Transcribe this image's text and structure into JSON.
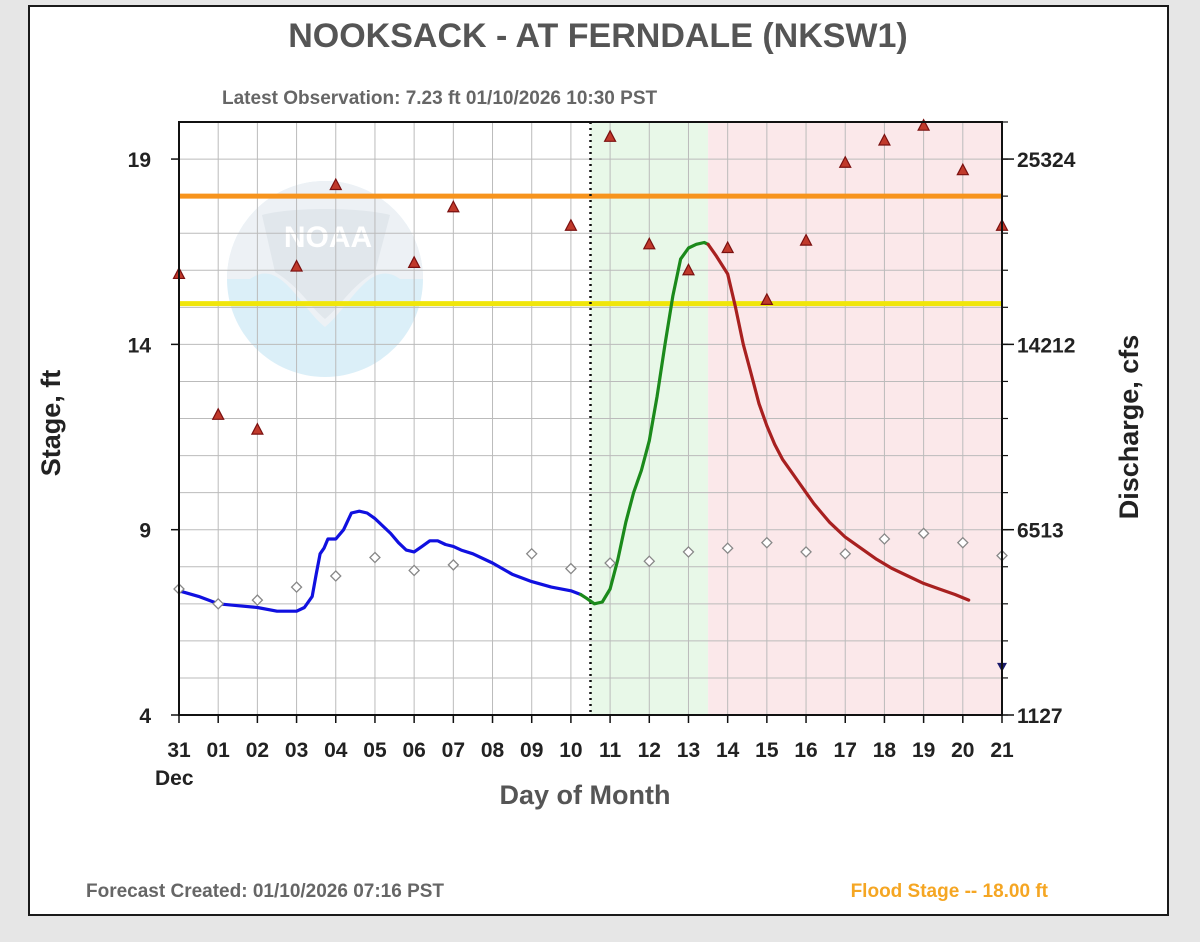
{
  "chart_data": {
    "type": "line",
    "title": "NOOKSACK - AT FERNDALE  (NKSW1)",
    "latest_observation": "Latest Observation: 7.23 ft 01/10/2026 10:30 PST",
    "xlabel": "Day of Month",
    "ylabel": "Stage, ft",
    "y2label": "Discharge, cfs",
    "footer_left": "Forecast Created: 01/10/2026 07:16 PST",
    "footer_right": "Flood Stage -- 18.00 ft",
    "month_label": "Dec",
    "x_tick_labels": [
      "31",
      "01",
      "02",
      "03",
      "04",
      "05",
      "06",
      "07",
      "08",
      "09",
      "10",
      "11",
      "12",
      "13",
      "14",
      "15",
      "16",
      "17",
      "18",
      "19",
      "20",
      "21"
    ],
    "y_ticks": [
      4,
      9,
      14,
      19
    ],
    "y2_ticks": [
      "1127",
      "6513",
      "14212",
      "25324"
    ],
    "xlim": [
      0,
      21
    ],
    "ylim": [
      4,
      20
    ],
    "grid": true,
    "reference_lines": [
      {
        "value": 18.0,
        "color": "#f7941d"
      },
      {
        "value": 15.1,
        "color": "#f0e60a"
      }
    ],
    "now_marker_x": 10.5,
    "shaded_regions": [
      {
        "from": 10.5,
        "to": 13.5,
        "color": "#e8f8e8"
      },
      {
        "from": 13.5,
        "to": 21,
        "color": "#fbe8ea"
      }
    ],
    "series": [
      {
        "color": "#1010e0",
        "x": [
          0,
          0.5,
          1,
          1.5,
          2,
          2.5,
          3,
          3.2,
          3.4,
          3.5,
          3.6,
          3.7,
          3.8,
          4.0,
          4.2,
          4.4,
          4.6,
          4.8,
          5.0,
          5.2,
          5.4,
          5.6,
          5.8,
          6.0,
          6.2,
          6.4,
          6.6,
          6.8,
          7.0,
          7.2,
          7.5,
          8.0,
          8.5,
          9.0,
          9.5,
          10.0,
          10.25
        ],
        "y": [
          7.35,
          7.2,
          7.0,
          6.95,
          6.9,
          6.8,
          6.8,
          6.9,
          7.2,
          7.8,
          8.35,
          8.5,
          8.75,
          8.75,
          9.0,
          9.45,
          9.5,
          9.45,
          9.3,
          9.1,
          8.9,
          8.65,
          8.45,
          8.4,
          8.55,
          8.7,
          8.7,
          8.6,
          8.55,
          8.45,
          8.35,
          8.1,
          7.8,
          7.6,
          7.45,
          7.35,
          7.25
        ]
      },
      {
        "color": "#1b8a1b",
        "x": [
          10.25,
          10.4,
          10.6,
          10.8,
          11.0,
          11.2,
          11.4,
          11.6,
          11.8,
          12.0,
          12.2,
          12.4,
          12.6,
          12.8,
          13.0,
          13.2,
          13.4,
          13.5
        ],
        "y": [
          7.25,
          7.15,
          7.0,
          7.05,
          7.4,
          8.2,
          9.2,
          10.0,
          10.6,
          11.4,
          12.6,
          14.0,
          15.3,
          16.3,
          16.6,
          16.7,
          16.75,
          16.7
        ]
      },
      {
        "color": "#a82020",
        "x": [
          13.5,
          13.7,
          14.0,
          14.2,
          14.4,
          14.6,
          14.8,
          15.0,
          15.2,
          15.4,
          15.6,
          15.8,
          16.0,
          16.2,
          16.4,
          16.6,
          16.8,
          17.0,
          17.4,
          17.8,
          18.2,
          18.6,
          19.0,
          19.4,
          19.8,
          20.15
        ],
        "y": [
          16.7,
          16.4,
          15.9,
          15.0,
          14.0,
          13.2,
          12.4,
          11.8,
          11.3,
          10.9,
          10.6,
          10.3,
          10.0,
          9.7,
          9.45,
          9.2,
          9.0,
          8.8,
          8.5,
          8.2,
          7.95,
          7.75,
          7.55,
          7.4,
          7.25,
          7.1
        ]
      }
    ],
    "markers": [
      {
        "shape": "triangle",
        "color": "#a52a2a",
        "x": [
          0,
          1,
          2,
          3,
          4,
          6,
          7,
          10,
          11,
          12,
          13,
          14,
          15,
          16,
          17,
          18,
          19,
          20,
          21
        ],
        "y": [
          15.9,
          12.1,
          11.7,
          16.1,
          18.3,
          16.2,
          17.7,
          17.2,
          19.6,
          16.7,
          16.0,
          16.6,
          15.2,
          16.8,
          18.9,
          19.5,
          19.9,
          18.7,
          17.2
        ]
      },
      {
        "shape": "diamond",
        "color": "#888888",
        "x": [
          0,
          1,
          2,
          3,
          4,
          5,
          6,
          7,
          9,
          10,
          11,
          12,
          13,
          14,
          15,
          16,
          17,
          18,
          19,
          20,
          21
        ],
        "y": [
          7.4,
          7.0,
          7.1,
          7.45,
          7.75,
          8.25,
          7.9,
          8.05,
          8.35,
          7.95,
          8.1,
          8.15,
          8.4,
          8.5,
          8.65,
          8.4,
          8.35,
          8.75,
          8.9,
          8.65,
          8.3
        ]
      },
      {
        "shape": "down-triangle",
        "color": "#1a1a6a",
        "x": [
          21
        ],
        "y": [
          5.3
        ]
      }
    ],
    "logo_text": "NOAA"
  }
}
